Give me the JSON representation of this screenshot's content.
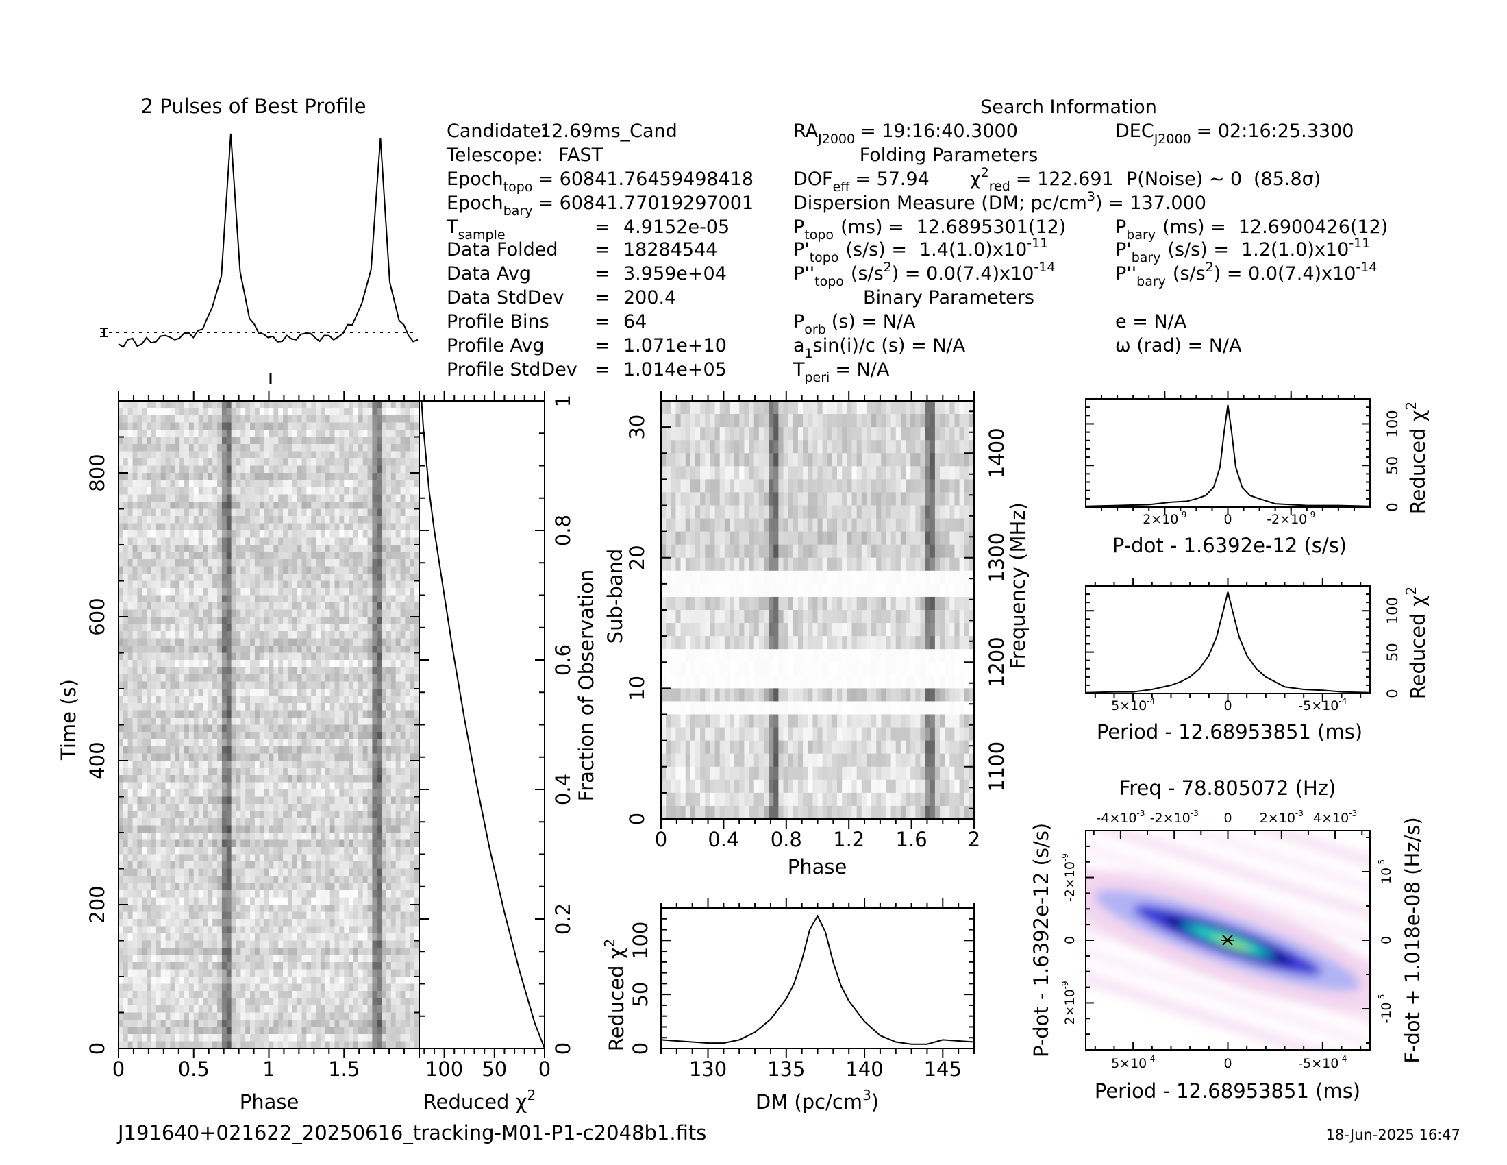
{
  "footer": {
    "filename": "J191640+021622_20250616_tracking-M01-P1-c2048b1.fits",
    "date": "18-Jun-2025 16:47"
  },
  "info": {
    "search_title": "Search Information",
    "candidate": [
      "Candidate:",
      "12.69ms_Cand"
    ],
    "telescope": [
      "Telescope:",
      "FAST"
    ],
    "epoch_topo": [
      "Epoch",
      "topo",
      "= 60841.76459498418"
    ],
    "epoch_bary": [
      "Epoch",
      "bary",
      "= 60841.77019297001"
    ],
    "rows": [
      {
        "label": "T",
        "sub": "sample",
        "eq": "=",
        "value": "4.9152e-05"
      },
      {
        "label": "Data Folded",
        "sub": "",
        "eq": "=",
        "value": "18284544"
      },
      {
        "label": "Data Avg",
        "sub": "",
        "eq": "=",
        "value": "3.959e+04"
      },
      {
        "label": "Data StdDev",
        "sub": "",
        "eq": "=",
        "value": "200.4"
      },
      {
        "label": "Profile Bins",
        "sub": "",
        "eq": "=",
        "value": "64"
      },
      {
        "label": "Profile Avg",
        "sub": "",
        "eq": "=",
        "value": "1.071e+10"
      },
      {
        "label": "Profile StdDev",
        "sub": "",
        "eq": "=",
        "value": "1.014e+05"
      }
    ],
    "ra": [
      "RA",
      "J2000",
      "= 19:16:40.3000"
    ],
    "dec": [
      "DEC",
      "J2000",
      "= 02:16:25.3300"
    ],
    "folding_title": "Folding Parameters",
    "dof": [
      "DOF",
      "eff",
      "= 57.94"
    ],
    "chi2": [
      "χ",
      "2",
      "red",
      "= 122.691"
    ],
    "pnoise": "P(Noise) ~ 0",
    "sigma": "(85.8σ)",
    "dm_line": [
      "Dispersion Measure (DM; pc/cm",
      "3",
      ") = 137.000"
    ],
    "ptopo": [
      "P",
      "topo",
      "(ms) =",
      "12.6895301(12)"
    ],
    "pbary": [
      "P",
      "bary",
      "(ms) =",
      "12.6900426(12)"
    ],
    "pdtopo": [
      "P'",
      "topo",
      "(s/s) =",
      "1.4(1.0)x10",
      "-11"
    ],
    "pdbary": [
      "P'",
      "bary",
      "(s/s) =",
      "1.2(1.0)x10",
      "-11"
    ],
    "pddtopo": [
      "P''",
      "topo",
      "(s/s",
      "2",
      ") = 0.0(7.4)x10",
      "-14"
    ],
    "pddbary": [
      "P''",
      "bary",
      "(s/s",
      "2",
      ") = 0.0(7.4)x10",
      "-14"
    ],
    "binary_title": "Binary Parameters",
    "porb": [
      "P",
      "orb",
      "(s) = N/A"
    ],
    "asini": [
      "a",
      "1",
      "sin(i)/c (s) = N/A"
    ],
    "tperi": [
      "T",
      "peri",
      "= N/A"
    ],
    "ecc": "e = N/A",
    "omega": "ω (rad) = N/A"
  },
  "chart_data": [
    {
      "type": "line",
      "title": "2 Pulses of Best Profile",
      "x": [
        0,
        0.0625,
        0.125,
        0.1875,
        0.25,
        0.3125,
        0.375,
        0.4375,
        0.5,
        0.5625,
        0.625,
        0.6875,
        0.75,
        0.8125,
        0.875,
        0.9375,
        1.0,
        1.0625,
        1.125,
        1.1875,
        1.25,
        1.3125,
        1.375,
        1.4375,
        1.5,
        1.5625,
        1.625,
        1.6875,
        1.75,
        1.8125,
        1.875,
        1.9375,
        2.0
      ],
      "values": [
        0.01,
        0.03,
        0.0,
        0.04,
        0.02,
        0.05,
        0.03,
        0.06,
        0.04,
        0.08,
        0.18,
        0.33,
        1.0,
        0.35,
        0.13,
        0.06,
        0.04,
        0.02,
        0.05,
        0.03,
        0.06,
        0.04,
        0.05,
        0.03,
        0.06,
        0.1,
        0.2,
        0.36,
        0.98,
        0.3,
        0.12,
        0.05,
        0.03
      ],
      "annotations": [
        "error bar marker",
        "dotted baseline"
      ]
    },
    {
      "type": "heatmap",
      "name": "time-phase",
      "xlabel": "Phase",
      "ylabel": "Time (s)",
      "xlim": [
        0,
        2
      ],
      "ylim": [
        0,
        900
      ],
      "xticks": [
        "0",
        "0.5",
        "1",
        "1.5"
      ],
      "yticks": [
        "0",
        "200",
        "400",
        "600",
        "800"
      ],
      "pulse_phases": [
        0.72,
        1.72
      ]
    },
    {
      "type": "line",
      "name": "chi2-vs-fraction",
      "xlabel": "Reduced χ",
      "xlabel_sup": "2",
      "ylabel": "Fraction of Observation",
      "xlim": [
        125,
        0
      ],
      "ylim": [
        0,
        1
      ],
      "xticks": [
        "100",
        "50",
        "0"
      ],
      "yticks": [
        "0",
        "0.2",
        "0.4",
        "0.6",
        "0.8",
        "1"
      ],
      "x": [
        0,
        10,
        25,
        40,
        55,
        68,
        80,
        91,
        101,
        110,
        115,
        118,
        121,
        122.7
      ],
      "y": [
        0,
        0.04,
        0.12,
        0.21,
        0.31,
        0.41,
        0.51,
        0.61,
        0.71,
        0.8,
        0.86,
        0.91,
        0.96,
        1.0
      ]
    },
    {
      "type": "heatmap",
      "name": "subband-phase",
      "xlabel": "Phase",
      "ylabel": "Sub-band",
      "ylabel_right": "Frequency (MHz)",
      "xlim": [
        0,
        2
      ],
      "ylim": [
        0,
        32
      ],
      "xticks": [
        "0",
        "0.4",
        "0.8",
        "1.2",
        "1.6",
        "2"
      ],
      "yticks": [
        "0",
        "10",
        "20",
        "30"
      ],
      "yticks_right": [
        "1100",
        "1200",
        "1300",
        "1400"
      ],
      "freq_range": [
        1050,
        1450
      ],
      "pulse_phases": [
        0.72,
        1.72
      ],
      "masked_subbands": [
        8.5,
        11,
        12,
        13,
        17.5,
        18.5
      ]
    },
    {
      "type": "line",
      "name": "dm-curve",
      "xlabel": "DM (pc/cm",
      "xlabel_sup": "3",
      "xlabel_end": ")",
      "ylabel": "Reduced χ",
      "ylabel_sup": "2",
      "xlim": [
        127,
        147
      ],
      "ylim": [
        0,
        130
      ],
      "xticks": [
        "130",
        "135",
        "140",
        "145"
      ],
      "yticks": [
        "0",
        "50",
        "100"
      ],
      "x": [
        127,
        128,
        129,
        130,
        131,
        132,
        133,
        134,
        135,
        135.5,
        136,
        136.5,
        137,
        137.5,
        138,
        138.5,
        139,
        140,
        141,
        142,
        143,
        144,
        145,
        146,
        147
      ],
      "y": [
        8,
        7,
        6,
        5,
        5,
        8,
        15,
        27,
        46,
        60,
        82,
        110,
        122.7,
        108,
        80,
        58,
        44,
        25,
        12,
        6,
        4,
        4,
        8,
        7,
        6
      ]
    },
    {
      "type": "line",
      "name": "pdot-curve",
      "xlabel": "P-dot - 1.6392e-12 (s/s)",
      "ylabel": "Reduced χ",
      "ylabel_sup": "2",
      "xlim": [
        4.5,
        -4.5
      ],
      "x_unit": "1e-9",
      "ylim": [
        0,
        130
      ],
      "xticks": [
        "2×10",
        "0",
        "-2×10"
      ],
      "xticks_sup": [
        "-9",
        "",
        "-9"
      ],
      "yticks": [
        "0",
        "50",
        "100"
      ],
      "x": [
        4.5,
        3.5,
        2.5,
        1.8,
        1.3,
        1.0,
        0.7,
        0.45,
        0.25,
        0.12,
        0,
        -0.12,
        -0.25,
        -0.45,
        -0.7,
        -1.0,
        -1.5,
        -2.5,
        -3.5,
        -4.5
      ],
      "y": [
        1,
        2,
        3,
        6,
        7,
        10,
        14,
        24,
        48,
        90,
        122.7,
        90,
        48,
        24,
        14,
        10,
        4,
        2,
        2,
        1
      ]
    },
    {
      "type": "line",
      "name": "period-curve",
      "xlabel": "Period - 12.68953851 (ms)",
      "ylabel": "Reduced χ",
      "ylabel_sup": "2",
      "xlim": [
        7.5,
        -7.5
      ],
      "x_unit": "1e-4",
      "ylim": [
        0,
        130
      ],
      "xticks": [
        "5×10",
        "0",
        "-5×10"
      ],
      "xticks_sup": [
        "-4",
        "",
        "-4"
      ],
      "yticks": [
        "0",
        "50",
        "100"
      ],
      "x": [
        7.5,
        6,
        5,
        4,
        3,
        2.5,
        2,
        1.5,
        1,
        0.6,
        0.3,
        0,
        -0.3,
        -0.6,
        -1,
        -1.5,
        -2,
        -2.5,
        -3,
        -4,
        -5,
        -6,
        -7.5
      ],
      "y": [
        1,
        2,
        2,
        5,
        10,
        14,
        20,
        30,
        46,
        68,
        95,
        122.7,
        95,
        68,
        46,
        30,
        20,
        14,
        8,
        5,
        4,
        2,
        1
      ]
    },
    {
      "type": "heatmap",
      "name": "period-pdot-plane",
      "title": "Freq - 78.805072 (Hz)",
      "xlabel": "Period - 12.68953851 (ms)",
      "ylabel": "P-dot - 1.6392e-12 (s/s)",
      "ylabel_right": "F-dot + 1.018e-08 (Hz/s)",
      "xlim": [
        7.5,
        -7.5
      ],
      "ylim": [
        3.5,
        -3.5
      ],
      "xticks": [
        "5×10",
        "0",
        "-5×10"
      ],
      "xticks_sup": [
        "-4",
        "",
        "-4"
      ],
      "yticks": [
        "-2×10",
        "0",
        "2×10"
      ],
      "yticks_sup": [
        "-9",
        "",
        "-9"
      ],
      "top_ticks": [
        "-4×10",
        "-2×10",
        "0",
        "2×10",
        "4×10"
      ],
      "top_ticks_sup": [
        "-3",
        "-3",
        "",
        "-3",
        "-3"
      ],
      "right_ticks": [
        "10",
        "0",
        "-10"
      ],
      "right_ticks_sup": [
        "-5",
        "",
        "-5"
      ],
      "colors": [
        "#ffffff",
        "#f3d6ef",
        "#b0b4f4",
        "#3a3ad8",
        "#0a0a90",
        "#00a0c0",
        "#28e0c0",
        "#a8f060"
      ]
    }
  ]
}
